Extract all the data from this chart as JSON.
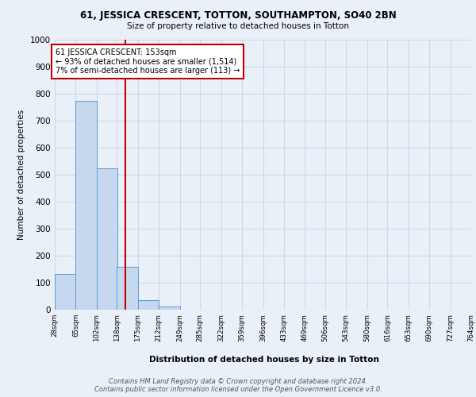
{
  "title1": "61, JESSICA CRESCENT, TOTTON, SOUTHAMPTON, SO40 2BN",
  "title2": "Size of property relative to detached houses in Totton",
  "xlabel": "Distribution of detached houses by size in Totton",
  "ylabel": "Number of detached properties",
  "bar_edges": [
    28,
    65,
    102,
    138,
    175,
    212,
    249,
    285,
    322,
    359,
    396,
    433,
    469,
    506,
    543,
    580,
    616,
    653,
    690,
    727,
    764
  ],
  "bar_heights": [
    132,
    775,
    524,
    160,
    35,
    12,
    0,
    0,
    0,
    0,
    0,
    0,
    0,
    0,
    0,
    0,
    0,
    0,
    0,
    0
  ],
  "bar_color": "#c5d8ed",
  "bar_edge_color": "#5b9bd5",
  "vline_x": 153,
  "vline_color": "#c00000",
  "annotation_line1": "61 JESSICA CRESCENT: 153sqm",
  "annotation_line2": "← 93% of detached houses are smaller (1,514)",
  "annotation_line3": "7% of semi-detached houses are larger (113) →",
  "annotation_box_color": "#c00000",
  "annotation_bg": "#ffffff",
  "ylim": [
    0,
    1000
  ],
  "yticks": [
    0,
    100,
    200,
    300,
    400,
    500,
    600,
    700,
    800,
    900,
    1000
  ],
  "grid_color": "#d0d8e8",
  "footer_text": "Contains HM Land Registry data © Crown copyright and database right 2024.\nContains public sector information licensed under the Open Government Licence v3.0.",
  "background_color": "#eaf0f8",
  "plot_bg_color": "#eaf0f8"
}
